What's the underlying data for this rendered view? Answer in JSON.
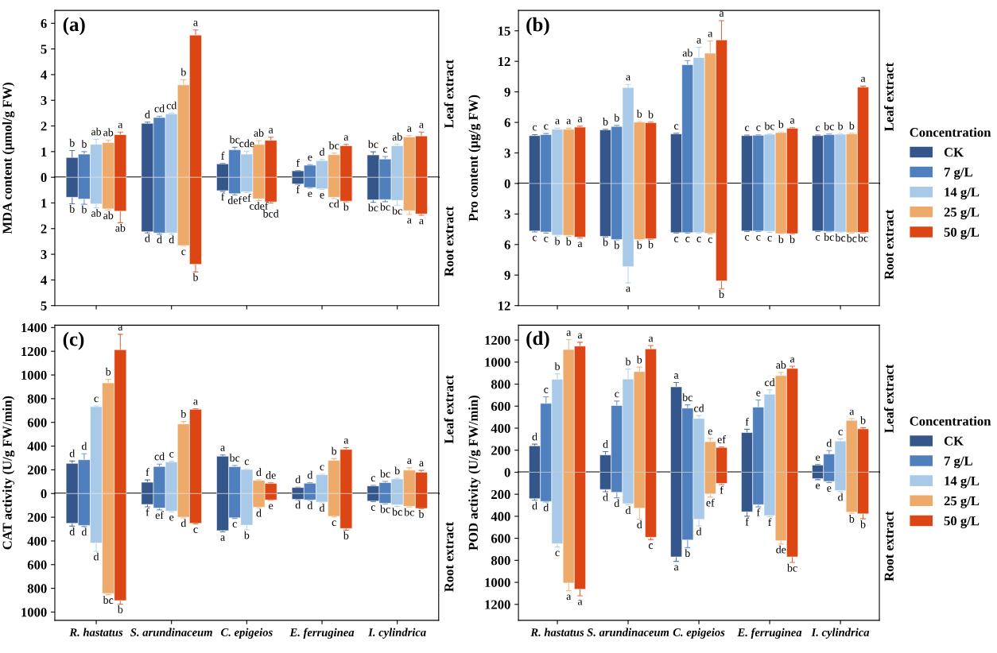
{
  "chart_data": [
    {
      "type": "bar",
      "title": "(a)",
      "ylabel": "MDA content (μmol/g FW)",
      "categories": [
        null,
        null,
        null,
        null,
        null
      ],
      "ylim": [
        0,
        6.5
      ],
      "yticks": [
        0,
        1,
        2,
        3,
        4,
        5,
        6
      ],
      "annotations": [
        "Leaf extract"
      ],
      "series": [
        {
          "color": "#34568a",
          "values": [
            0.77,
            2.1,
            0.52,
            0.25,
            0.87
          ],
          "errors": [
            0.27,
            0.05,
            0.02,
            0.01,
            0.12
          ],
          "value_labels": [
            "b",
            "d",
            "f",
            "f",
            "bc"
          ]
        },
        {
          "color": "#4f80bd",
          "values": [
            0.9,
            2.33,
            1.07,
            0.47,
            0.71
          ],
          "errors": [
            0.1,
            0.05,
            0.1,
            0.02,
            0.1
          ],
          "value_labels": [
            "b",
            "cd",
            "bc",
            "e",
            "c"
          ]
        },
        {
          "color": "#a8cae8",
          "values": [
            1.28,
            2.47,
            0.9,
            0.65,
            1.23
          ],
          "errors": [
            0.2,
            0.03,
            0.12,
            0.04,
            0.05
          ],
          "value_labels": [
            "ab",
            "cd",
            "cde",
            "d",
            "ab"
          ]
        },
        {
          "color": "#edaa6b",
          "values": [
            1.35,
            3.6,
            1.28,
            0.88,
            1.57
          ],
          "errors": [
            0.1,
            0.2,
            0.15,
            0.06,
            0.05
          ],
          "value_labels": [
            "ab",
            "b",
            "ab",
            "bc",
            "a"
          ]
        },
        {
          "color": "#dc4614",
          "values": [
            1.66,
            5.54,
            1.44,
            1.23,
            1.61
          ],
          "errors": [
            0.1,
            0.2,
            0.12,
            0.05,
            0.15
          ],
          "value_labels": [
            "a",
            "a",
            "a",
            "a",
            "a"
          ]
        }
      ]
    },
    {
      "type": "bar",
      "categories": [
        null,
        null,
        null,
        null,
        null
      ],
      "ylim": [
        5,
        0
      ],
      "yticks": [
        1,
        2,
        3,
        4,
        5
      ],
      "annotations": [
        "Root extract"
      ],
      "series": [
        {
          "color": "#34568a",
          "values": [
            0.78,
            2.12,
            0.52,
            0.26,
            0.88
          ],
          "errors": [
            0.25,
            0.05,
            0.03,
            0.01,
            0.1
          ],
          "value_labels": [
            "b",
            "d",
            "f",
            "f",
            "bc"
          ]
        },
        {
          "color": "#4f80bd",
          "values": [
            0.85,
            2.17,
            0.64,
            0.4,
            0.87
          ],
          "errors": [
            0.2,
            0.05,
            0.05,
            0.02,
            0.08
          ],
          "value_labels": [
            "b",
            "d",
            "def",
            "e",
            "bc"
          ]
        },
        {
          "color": "#a8cae8",
          "values": [
            1.04,
            2.17,
            0.57,
            0.45,
            0.9
          ],
          "errors": [
            0.15,
            0.05,
            0.03,
            0.02,
            0.2
          ],
          "value_labels": [
            "ab",
            "d",
            "ef",
            "e",
            "bc"
          ]
        },
        {
          "color": "#edaa6b",
          "values": [
            1.23,
            2.66,
            0.84,
            0.78,
            1.3
          ],
          "errors": [
            0.05,
            0.02,
            0.07,
            0.05,
            0.15
          ],
          "value_labels": [
            "ab",
            "c",
            "cdef",
            "cd",
            "a"
          ]
        },
        {
          "color": "#dc4614",
          "values": [
            1.32,
            3.39,
            0.96,
            0.93,
            1.43
          ],
          "errors": [
            0.45,
            0.3,
            0.05,
            0.02,
            0.05
          ],
          "value_labels": [
            "ab",
            "b",
            "bcd",
            "b",
            "a"
          ]
        }
      ]
    },
    {
      "type": "bar",
      "title": "(b)",
      "ylabel": "Pro content (μg/g FW)",
      "categories": [
        null,
        null,
        null,
        null,
        null
      ],
      "ylim": [
        0,
        17
      ],
      "yticks": [
        0,
        3,
        6,
        9,
        12,
        15
      ],
      "annotations": [
        "Leaf extract"
      ],
      "legend": "right",
      "legend_title": "Concentration",
      "series": [
        {
          "name": "CK",
          "color": "#34568a",
          "values": [
            4.7,
            5.27,
            4.87,
            4.7,
            4.7
          ],
          "errors": [
            0.1,
            0.05,
            0.05,
            0.05,
            0.05
          ],
          "value_labels": [
            "c",
            "b",
            "c",
            "c",
            "c"
          ]
        },
        {
          "name": "7 g/L",
          "color": "#4f80bd",
          "values": [
            4.8,
            5.6,
            11.67,
            4.73,
            4.8
          ],
          "errors": [
            0.1,
            0.1,
            0.4,
            0.05,
            0.05
          ],
          "value_labels": [
            "c",
            "b",
            "ab",
            "c",
            "bc"
          ]
        },
        {
          "name": "14 g/L",
          "color": "#a8cae8",
          "values": [
            5.33,
            9.43,
            12.37,
            4.83,
            4.83
          ],
          "errors": [
            0.1,
            0.3,
            1.0,
            0.05,
            0.05
          ],
          "value_labels": [
            "a",
            "a",
            "a",
            "bc",
            "b"
          ]
        },
        {
          "name": "25 g/L",
          "color": "#edaa6b",
          "values": [
            5.33,
            6.03,
            12.8,
            5.0,
            4.87
          ],
          "errors": [
            0.1,
            0.05,
            1.2,
            0.05,
            0.05
          ],
          "value_labels": [
            "a",
            "b",
            "a",
            "b",
            "b"
          ]
        },
        {
          "name": "50 g/L",
          "color": "#dc4614",
          "values": [
            5.53,
            5.97,
            14.1,
            5.43,
            9.47
          ],
          "errors": [
            0.1,
            0.05,
            1.9,
            0.05,
            0.1
          ],
          "value_labels": [
            "a",
            "b",
            "a",
            "a",
            "a"
          ]
        }
      ]
    },
    {
      "type": "bar",
      "categories": [
        null,
        null,
        null,
        null,
        null
      ],
      "ylim": [
        12,
        0
      ],
      "yticks": [
        3,
        6,
        9,
        12
      ],
      "annotations": [
        "Root extract"
      ],
      "series": [
        {
          "color": "#34568a",
          "values": [
            4.67,
            5.2,
            4.83,
            4.67,
            4.67
          ],
          "errors": [
            0.1,
            0.05,
            0.05,
            0.05,
            0.05
          ],
          "value_labels": [
            "c",
            "b",
            "c",
            "c",
            "c"
          ]
        },
        {
          "color": "#4f80bd",
          "values": [
            4.77,
            5.5,
            4.83,
            4.67,
            4.7
          ],
          "errors": [
            0.1,
            0.05,
            0.05,
            0.05,
            0.05
          ],
          "value_labels": [
            "c",
            "b",
            "c",
            "c",
            "bc"
          ]
        },
        {
          "color": "#a8cae8",
          "values": [
            5.07,
            8.17,
            4.83,
            4.7,
            4.77
          ],
          "errors": [
            0.1,
            1.6,
            0.05,
            0.1,
            0.05
          ],
          "value_labels": [
            "b",
            "a",
            "c",
            "c",
            "bc"
          ]
        },
        {
          "color": "#edaa6b",
          "values": [
            5.1,
            5.5,
            4.9,
            4.93,
            4.83
          ],
          "errors": [
            0.1,
            0.05,
            0.05,
            0.05,
            0.05
          ],
          "value_labels": [
            "b",
            "b",
            "c",
            "b",
            "bc"
          ]
        },
        {
          "color": "#dc4614",
          "values": [
            5.27,
            5.43,
            9.57,
            4.93,
            4.8
          ],
          "errors": [
            0.1,
            0.05,
            0.8,
            0.05,
            0.05
          ],
          "value_labels": [
            "a",
            "b",
            "b",
            "b",
            "bc"
          ]
        }
      ]
    },
    {
      "type": "bar",
      "title": "(c)",
      "ylabel": "CAT activity (U/g FW/min)",
      "categories": [
        null,
        null,
        null,
        null,
        null
      ],
      "ylim": [
        0,
        1420
      ],
      "yticks": [
        0,
        200,
        400,
        600,
        800,
        1000,
        1200,
        1400
      ],
      "annotations": [
        "Leaf extract"
      ],
      "series": [
        {
          "color": "#34568a",
          "values": [
            254,
            95,
            315,
            51,
            64
          ],
          "errors": [
            20,
            20,
            10,
            3,
            5
          ],
          "value_labels": [
            "d",
            "f",
            "a",
            "d",
            "c"
          ]
        },
        {
          "color": "#4f80bd",
          "values": [
            285,
            228,
            226,
            87,
            92
          ],
          "errors": [
            50,
            20,
            10,
            5,
            10
          ],
          "value_labels": [
            "d",
            "cd",
            "bc",
            "d",
            "bc"
          ]
        },
        {
          "color": "#a8cae8",
          "values": [
            733,
            267,
            203,
            159,
            123
          ],
          "errors": [
            5,
            5,
            5,
            3,
            5
          ],
          "value_labels": [
            "c",
            "c",
            "c",
            "c",
            "b"
          ]
        },
        {
          "color": "#edaa6b",
          "values": [
            933,
            587,
            110,
            279,
            197
          ],
          "errors": [
            30,
            20,
            5,
            15,
            20
          ],
          "value_labels": [
            "b",
            "b",
            "d",
            "b",
            "a"
          ]
        },
        {
          "color": "#dc4614",
          "values": [
            1213,
            710,
            85,
            372,
            180
          ],
          "errors": [
            130,
            5,
            5,
            15,
            15
          ],
          "value_labels": [
            "a",
            "a",
            "de",
            "a",
            "a"
          ]
        }
      ]
    },
    {
      "type": "bar",
      "categories": [
        "R. hastatus",
        "S. arundinaceum",
        "C. epigeios",
        "E. ferruginea",
        "I. cylindrica"
      ],
      "ylim": [
        1070,
        0
      ],
      "yticks": [
        200,
        400,
        600,
        800,
        1000
      ],
      "annotations": [
        "Root extract"
      ],
      "series": [
        {
          "color": "#34568a",
          "values": [
            251,
            92,
            313,
            49,
            64
          ],
          "errors": [
            25,
            20,
            10,
            3,
            5
          ],
          "value_labels": [
            "d",
            "f",
            "a",
            "d",
            "c"
          ]
        },
        {
          "color": "#4f80bd",
          "values": [
            269,
            123,
            205,
            54,
            82
          ],
          "errors": [
            10,
            15,
            5,
            3,
            5
          ],
          "value_labels": [
            "d",
            "ef",
            "c",
            "d",
            "bc"
          ]
        },
        {
          "color": "#a8cae8",
          "values": [
            418,
            149,
            267,
            72,
            95
          ],
          "errors": [
            70,
            5,
            40,
            5,
            15
          ],
          "value_labels": [
            "d",
            "e",
            "b",
            "d",
            "bc"
          ]
        },
        {
          "color": "#edaa6b",
          "values": [
            844,
            200,
            115,
            192,
            108
          ],
          "errors": [
            10,
            5,
            5,
            5,
            5
          ],
          "value_labels": [
            "bc",
            "d",
            "d",
            "c",
            "bc"
          ]
        },
        {
          "color": "#dc4614",
          "values": [
            903,
            251,
            54,
            295,
            126
          ],
          "errors": [
            30,
            5,
            3,
            15,
            3
          ],
          "value_labels": [
            "b",
            "c",
            "e",
            "b",
            "b"
          ]
        }
      ]
    },
    {
      "type": "bar",
      "title": "(d)",
      "ylabel": "POD activity (U/g FW/min)",
      "categories": [
        null,
        null,
        null,
        null,
        null
      ],
      "ylim": [
        0,
        1335
      ],
      "yticks": [
        0,
        200,
        400,
        600,
        800,
        1000,
        1200
      ],
      "annotations": [
        "Leaf extract"
      ],
      "legend": "right",
      "legend_title": "Concentration",
      "series": [
        {
          "name": "CK",
          "color": "#34568a",
          "values": [
            240,
            157,
            775,
            360,
            65
          ],
          "errors": [
            15,
            30,
            40,
            30,
            5
          ],
          "value_labels": [
            "d",
            "d",
            "a",
            "f",
            "e"
          ]
        },
        {
          "name": "7 g/L",
          "color": "#4f80bd",
          "values": [
            625,
            606,
            582,
            591,
            166
          ],
          "errors": [
            60,
            40,
            30,
            65,
            30
          ],
          "value_labels": [
            "c",
            "c",
            "bc",
            "e",
            "d"
          ]
        },
        {
          "name": "14 g/L",
          "color": "#a8cae8",
          "values": [
            843,
            846,
            489,
            708,
            283
          ],
          "errors": [
            50,
            90,
            25,
            40,
            20
          ],
          "value_labels": [
            "b",
            "b",
            "cd",
            "cd",
            "c"
          ]
        },
        {
          "name": "25 g/L",
          "color": "#edaa6b",
          "values": [
            1114,
            914,
            277,
            877,
            471
          ],
          "errors": [
            90,
            40,
            30,
            30,
            15
          ],
          "value_labels": [
            "a",
            "b",
            "e",
            "ab",
            "a"
          ]
        },
        {
          "name": "50 g/L",
          "color": "#dc4614",
          "values": [
            1145,
            1120,
            225,
            942,
            394
          ],
          "errors": [
            35,
            30,
            5,
            20,
            10
          ],
          "value_labels": [
            "a",
            "a",
            "ef",
            "a",
            "b"
          ]
        }
      ]
    },
    {
      "type": "bar",
      "categories": [
        "R. hastatus",
        "S. arundinaceum",
        "C. epigeios",
        "E. ferruginea",
        "I. cylindrica"
      ],
      "ylim": [
        1345,
        0
      ],
      "yticks": [
        200,
        400,
        600,
        800,
        1000,
        1200
      ],
      "annotations": [
        "Root extract"
      ],
      "series": [
        {
          "color": "#34568a",
          "values": [
            240,
            157,
            769,
            360,
            58
          ],
          "errors": [
            15,
            20,
            40,
            40,
            10
          ],
          "value_labels": [
            "d",
            "d",
            "a",
            "f",
            "e"
          ]
        },
        {
          "color": "#4f80bd",
          "values": [
            265,
            182,
            615,
            295,
            83
          ],
          "errors": [
            5,
            50,
            70,
            20,
            10
          ],
          "value_labels": [
            "d",
            "d",
            "b",
            "f",
            "e"
          ]
        },
        {
          "color": "#a8cae8",
          "values": [
            649,
            286,
            428,
            394,
            166
          ],
          "errors": [
            30,
            10,
            60,
            10,
            10
          ],
          "value_labels": [
            "c",
            "d",
            "d",
            "f",
            "d"
          ]
        },
        {
          "color": "#edaa6b",
          "values": [
            1006,
            326,
            197,
            622,
            363
          ],
          "errors": [
            70,
            100,
            30,
            30,
            10
          ],
          "value_labels": [
            "a",
            "d",
            "ef",
            "de",
            "b"
          ]
        },
        {
          "color": "#dc4614",
          "values": [
            1062,
            591,
            102,
            769,
            378
          ],
          "errors": [
            60,
            20,
            10,
            50,
            45
          ],
          "value_labels": [
            "a",
            "c",
            "f",
            "bc",
            "b"
          ]
        }
      ]
    }
  ]
}
